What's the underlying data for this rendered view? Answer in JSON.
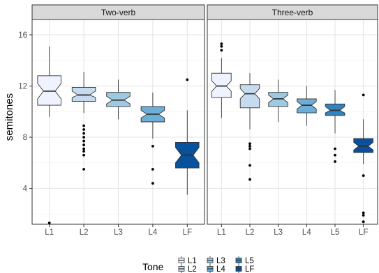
{
  "chart_data": {
    "type": "boxplot",
    "ylabel": "semitones",
    "yticks": [
      4,
      8,
      12,
      16
    ],
    "ylim": [
      1.2,
      17.2
    ],
    "grid": true,
    "legend": {
      "title": "Tone",
      "position": "bottom",
      "entries": [
        "L1",
        "L2",
        "L3",
        "L4",
        "L5",
        "LF"
      ]
    },
    "colors": {
      "L1": "#eff3ff",
      "L2": "#c6dbef",
      "L3": "#9ecae1",
      "L4": "#6baed6",
      "L5": "#3182bd",
      "LF": "#08519c"
    },
    "panels": [
      {
        "title": "Two-verb",
        "categories": [
          "L1",
          "L2",
          "L3",
          "L4",
          "LF"
        ],
        "boxes": [
          {
            "tone": "L1",
            "whisker_low": 9.6,
            "q1": 10.5,
            "median": 11.6,
            "q3": 12.8,
            "whisker_high": 15.1,
            "notch_low": 11.0,
            "notch_high": 12.2,
            "outliers": [
              1.3
            ]
          },
          {
            "tone": "L2",
            "whisker_low": 9.9,
            "q1": 10.8,
            "median": 11.3,
            "q3": 11.9,
            "whisker_high": 13.1,
            "notch_low": 11.1,
            "notch_high": 11.6,
            "outliers": [
              8.9,
              8.6,
              8.3,
              8.0,
              7.7,
              7.4,
              7.1,
              6.9,
              6.6,
              5.5
            ]
          },
          {
            "tone": "L3",
            "whisker_low": 9.4,
            "q1": 10.4,
            "median": 10.9,
            "q3": 11.5,
            "whisker_high": 12.5,
            "notch_low": 10.6,
            "notch_high": 11.2,
            "outliers": []
          },
          {
            "tone": "L4",
            "whisker_low": 7.9,
            "q1": 9.2,
            "median": 9.8,
            "q3": 10.4,
            "whisker_high": 11.5,
            "notch_low": 9.5,
            "notch_high": 10.1,
            "outliers": [
              7.3,
              5.5,
              4.4
            ]
          },
          {
            "tone": "LF",
            "whisker_low": 3.5,
            "q1": 5.6,
            "median": 6.6,
            "q3": 7.6,
            "whisker_high": 10.1,
            "notch_low": 6.0,
            "notch_high": 7.2,
            "outliers": [
              12.5
            ]
          }
        ]
      },
      {
        "title": "Three-verb",
        "categories": [
          "L1",
          "L2",
          "L3",
          "L4",
          "L5",
          "LF"
        ],
        "boxes": [
          {
            "tone": "L1",
            "whisker_low": 9.5,
            "q1": 11.1,
            "median": 12.0,
            "q3": 13.0,
            "whisker_high": 14.2,
            "notch_low": 11.6,
            "notch_high": 12.4,
            "outliers": [
              15.3,
              15.1,
              14.8
            ]
          },
          {
            "tone": "L2",
            "whisker_low": 8.6,
            "q1": 10.3,
            "median": 11.4,
            "q3": 12.1,
            "whisker_high": 13.0,
            "notch_low": 11.0,
            "notch_high": 11.8,
            "outliers": [
              7.5,
              7.3,
              7.1,
              5.8,
              4.7
            ]
          },
          {
            "tone": "L3",
            "whisker_low": 9.2,
            "q1": 10.4,
            "median": 11.0,
            "q3": 11.5,
            "whisker_high": 12.5,
            "notch_low": 10.7,
            "notch_high": 11.3,
            "outliers": []
          },
          {
            "tone": "L4",
            "whisker_low": 8.9,
            "q1": 9.9,
            "median": 10.5,
            "q3": 11.0,
            "whisker_high": 12.0,
            "notch_low": 10.2,
            "notch_high": 10.8,
            "outliers": []
          },
          {
            "tone": "L5",
            "whisker_low": 8.3,
            "q1": 9.7,
            "median": 10.1,
            "q3": 10.6,
            "whisker_high": 11.7,
            "notch_low": 9.9,
            "notch_high": 10.4,
            "outliers": [
              7.1,
              6.6,
              6.1
            ]
          },
          {
            "tone": "LF",
            "whisker_low": 5.9,
            "q1": 6.8,
            "median": 7.3,
            "q3": 7.9,
            "whisker_high": 9.4,
            "notch_low": 7.0,
            "notch_high": 7.6,
            "outliers": [
              11.3,
              5.0,
              2.1,
              1.9,
              1.4
            ]
          }
        ]
      }
    ]
  }
}
